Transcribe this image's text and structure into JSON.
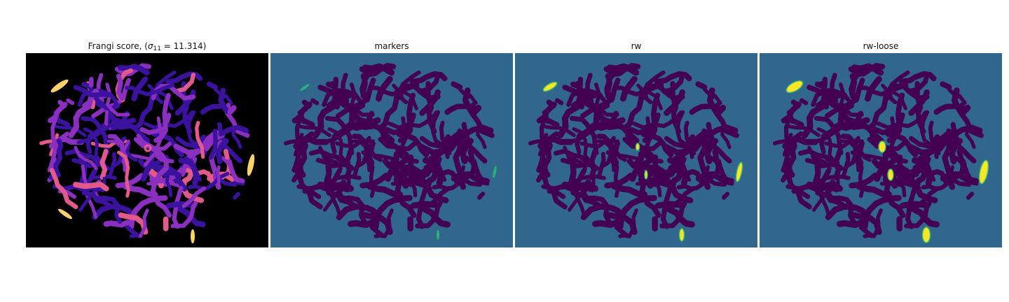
{
  "panels": [
    {
      "id": "frangi",
      "title_prefix": "Frangi score, (",
      "title_sigma": "σ",
      "title_sub": "11",
      "title_suffix": " = 11.314)"
    },
    {
      "id": "markers",
      "title": "markers"
    },
    {
      "id": "rw",
      "title": "rw"
    },
    {
      "id": "rw-loose",
      "title": "rw-loose"
    }
  ],
  "colors": {
    "frangi_background": "#000000",
    "frangi_low": "#3a129e",
    "frangi_mid": "#8b2fc0",
    "frangi_high": "#e25a8c",
    "frangi_peak": "#fcd16a",
    "label_background": "#31668d",
    "label_tissue": "#440154",
    "label_marker": "#29b178",
    "label_vessel_fill": "#fde725",
    "label_vessel_edge": "#3fbc73"
  }
}
